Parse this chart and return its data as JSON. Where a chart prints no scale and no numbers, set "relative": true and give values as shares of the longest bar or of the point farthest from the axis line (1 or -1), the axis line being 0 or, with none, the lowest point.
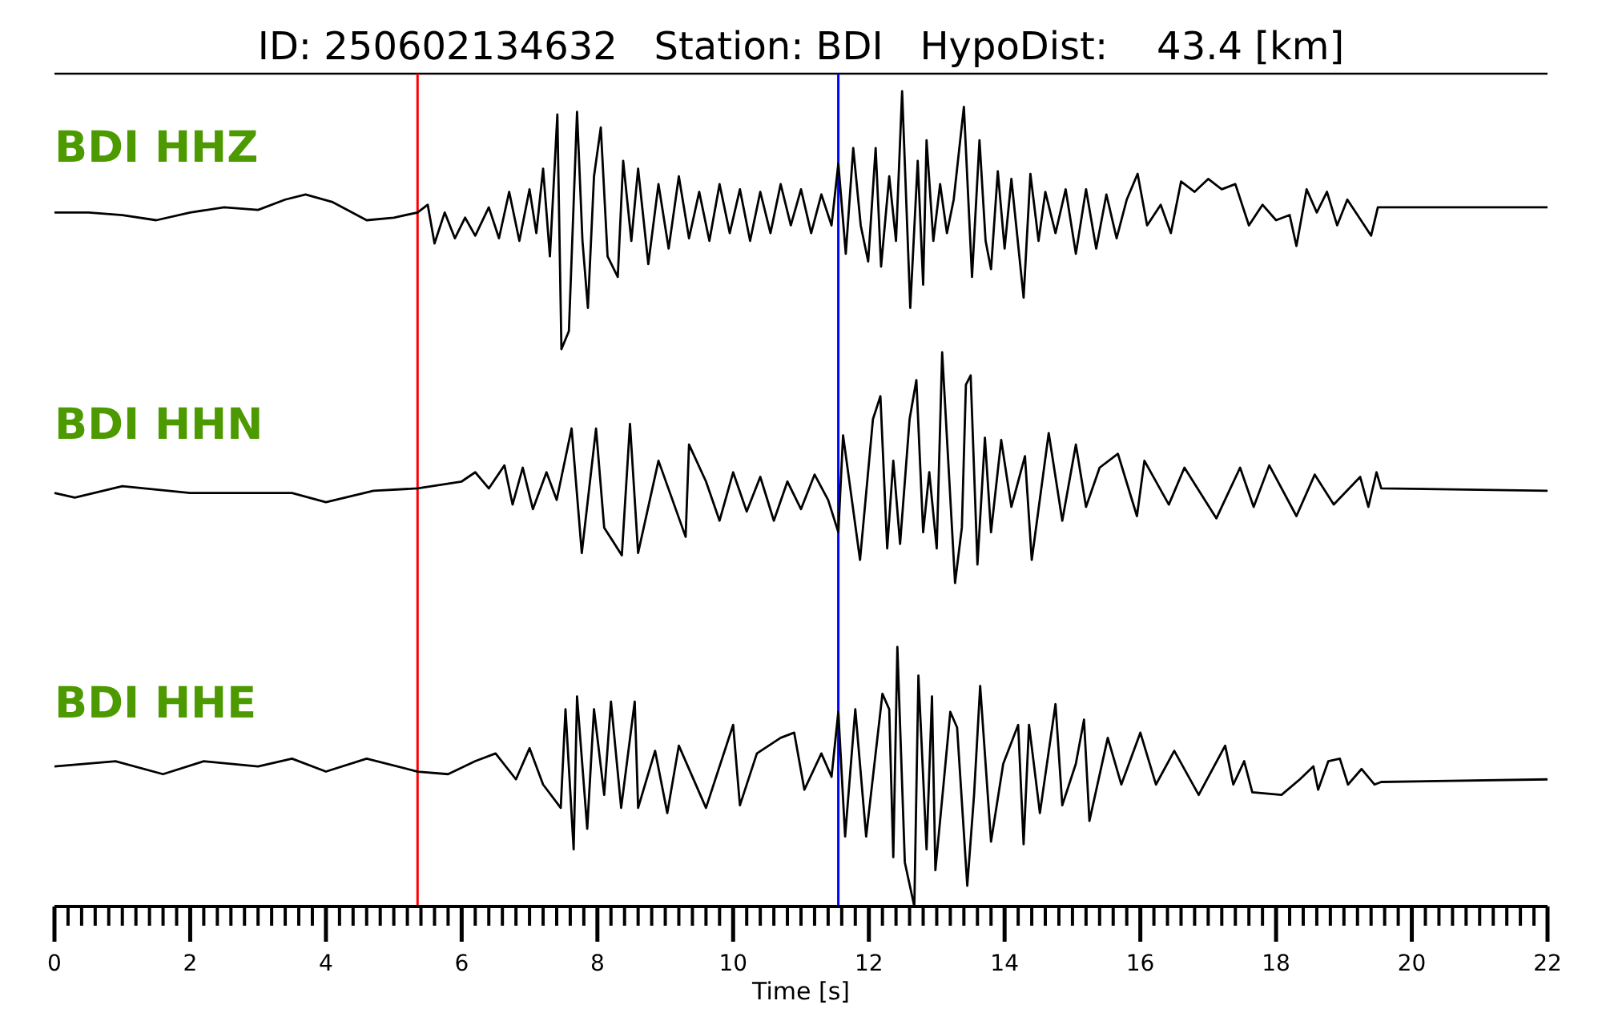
{
  "chart_data": [
    {
      "type": "line",
      "title": "ID: 250602134632   Station: BDI   HypoDist:    43.4 [km]",
      "annotations": [
        "BDI HHZ"
      ],
      "relative": true,
      "tick_labels": false,
      "xlim": [
        0,
        22
      ],
      "x": [
        0,
        0.5,
        1,
        1.5,
        2,
        2.5,
        3,
        3.4,
        3.7,
        4.1,
        4.6,
        5,
        5.35,
        5.5,
        5.6,
        5.75,
        5.9,
        6.05,
        6.2,
        6.4,
        6.55,
        6.7,
        6.85,
        7,
        7.1,
        7.2,
        7.3,
        7.41,
        7.47,
        7.58,
        7.7,
        7.78,
        7.86,
        7.95,
        8.05,
        8.15,
        8.3,
        8.38,
        8.5,
        8.6,
        8.75,
        8.9,
        9.05,
        9.2,
        9.35,
        9.5,
        9.65,
        9.8,
        9.95,
        10.1,
        10.25,
        10.4,
        10.55,
        10.7,
        10.85,
        11,
        11.15,
        11.3,
        11.45,
        11.55,
        11.66,
        11.77,
        11.88,
        11.99,
        12.1,
        12.18,
        12.3,
        12.4,
        12.49,
        12.61,
        12.72,
        12.8,
        12.85,
        12.95,
        13.05,
        13.15,
        13.25,
        13.4,
        13.52,
        13.63,
        13.72,
        13.8,
        13.9,
        14,
        14.1,
        14.28,
        14.38,
        14.5,
        14.6,
        14.75,
        14.9,
        15.05,
        15.2,
        15.35,
        15.5,
        15.65,
        15.8,
        15.96,
        16.1,
        16.3,
        16.45,
        16.6,
        16.8,
        17,
        17.2,
        17.4,
        17.6,
        17.8,
        18,
        18.2,
        18.3,
        18.45,
        18.6,
        18.75,
        18.9,
        19.05,
        19.2,
        19.4,
        19.5,
        22
      ],
      "series": [
        {
          "color": "#000000",
          "values": [
            0.53,
            0.53,
            0.52,
            0.5,
            0.53,
            0.55,
            0.54,
            0.58,
            0.6,
            0.57,
            0.5,
            0.51,
            0.53,
            0.56,
            0.41,
            0.53,
            0.43,
            0.51,
            0.44,
            0.55,
            0.43,
            0.61,
            0.42,
            0.62,
            0.45,
            0.7,
            0.36,
            0.91,
            0,
            0.07,
            0.92,
            0.42,
            0.16,
            0.67,
            0.86,
            0.36,
            0.28,
            0.73,
            0.42,
            0.7,
            0.33,
            0.64,
            0.39,
            0.67,
            0.43,
            0.61,
            0.42,
            0.64,
            0.45,
            0.62,
            0.42,
            0.61,
            0.45,
            0.64,
            0.48,
            0.62,
            0.45,
            0.6,
            0.48,
            0.72,
            0.37,
            0.78,
            0.48,
            0.34,
            0.78,
            0.32,
            0.67,
            0.42,
            1,
            0.16,
            0.73,
            0.25,
            0.81,
            0.42,
            0.64,
            0.45,
            0.58,
            0.94,
            0.28,
            0.81,
            0.42,
            0.31,
            0.69,
            0.39,
            0.66,
            0.2,
            0.68,
            0.42,
            0.61,
            0.45,
            0.62,
            0.37,
            0.62,
            0.39,
            0.6,
            0.43,
            0.58,
            0.68,
            0.48,
            0.56,
            0.45,
            0.65,
            0.61,
            0.66,
            0.62,
            0.64,
            0.48,
            0.56,
            0.5,
            0.52,
            0.4,
            0.62,
            0.53,
            0.61,
            0.48,
            0.58,
            0.52,
            0.44,
            0.55,
            0.55
          ]
        }
      ],
      "ref_lines": [
        {
          "axis": "x",
          "value": 5.35,
          "color": "#ff0000"
        },
        {
          "axis": "x",
          "value": 11.55,
          "color": "#0000ff"
        }
      ]
    },
    {
      "type": "line",
      "annotations": [
        "BDI HHN"
      ],
      "relative": true,
      "tick_labels": false,
      "xlim": [
        0,
        22
      ],
      "x": [
        0,
        0.3,
        1,
        2,
        3.5,
        4,
        4.7,
        5.35,
        6,
        6.2,
        6.4,
        6.63,
        6.75,
        6.9,
        7.05,
        7.25,
        7.4,
        7.62,
        7.77,
        7.98,
        8.1,
        8.36,
        8.48,
        8.6,
        8.9,
        9.3,
        9.35,
        9.6,
        9.8,
        10,
        10.2,
        10.4,
        10.6,
        10.8,
        11,
        11.2,
        11.4,
        11.55,
        11.62,
        11.87,
        12.06,
        12.17,
        12.27,
        12.36,
        12.46,
        12.6,
        12.7,
        12.8,
        12.89,
        13,
        13.08,
        13.27,
        13.37,
        13.43,
        13.5,
        13.6,
        13.71,
        13.8,
        13.95,
        14.1,
        14.3,
        14.4,
        14.65,
        14.85,
        15.05,
        15.2,
        15.4,
        15.67,
        15.95,
        16.06,
        16.42,
        16.65,
        17.12,
        17.47,
        17.67,
        17.9,
        18.3,
        18.57,
        18.85,
        19.24,
        19.36,
        19.48,
        19.55,
        22
      ],
      "series": [
        {
          "color": "#000000",
          "values": [
            0.39,
            0.37,
            0.42,
            0.39,
            0.39,
            0.35,
            0.4,
            0.41,
            0.44,
            0.48,
            0.41,
            0.51,
            0.34,
            0.5,
            0.32,
            0.48,
            0.36,
            0.67,
            0.13,
            0.67,
            0.24,
            0.12,
            0.69,
            0.13,
            0.53,
            0.2,
            0.6,
            0.44,
            0.27,
            0.48,
            0.31,
            0.46,
            0.27,
            0.44,
            0.32,
            0.47,
            0.36,
            0.22,
            0.64,
            0.1,
            0.71,
            0.81,
            0.15,
            0.53,
            0.17,
            0.71,
            0.88,
            0.22,
            0.48,
            0.15,
            1,
            0,
            0.24,
            0.86,
            0.9,
            0.08,
            0.63,
            0.22,
            0.62,
            0.33,
            0.55,
            0.1,
            0.65,
            0.27,
            0.6,
            0.33,
            0.5,
            0.56,
            0.29,
            0.53,
            0.34,
            0.5,
            0.28,
            0.5,
            0.33,
            0.51,
            0.29,
            0.47,
            0.34,
            0.46,
            0.33,
            0.48,
            0.41,
            0.4
          ]
        }
      ],
      "ref_lines": [
        {
          "axis": "x",
          "value": 5.35,
          "color": "#ff0000"
        },
        {
          "axis": "x",
          "value": 11.55,
          "color": "#0000ff"
        }
      ]
    },
    {
      "type": "line",
      "annotations": [
        "BDI HHE"
      ],
      "relative": true,
      "tick_labels": "x",
      "xlim": [
        0,
        22
      ],
      "xlabel": "Time [s]",
      "xticks": [
        0,
        {
          "value": 0.2,
          "label": null
        },
        {
          "value": 0.4,
          "label": null
        },
        {
          "value": 0.6,
          "label": null
        },
        {
          "value": 0.8,
          "label": null
        },
        {
          "value": 1,
          "label": null
        },
        {
          "value": 1.2,
          "label": null
        },
        {
          "value": 1.4,
          "label": null
        },
        {
          "value": 1.6,
          "label": null
        },
        {
          "value": 1.8,
          "label": null
        },
        2,
        {
          "value": 2.2,
          "label": null
        },
        {
          "value": 2.4,
          "label": null
        },
        {
          "value": 2.6,
          "label": null
        },
        {
          "value": 2.8,
          "label": null
        },
        {
          "value": 3,
          "label": null
        },
        {
          "value": 3.2,
          "label": null
        },
        {
          "value": 3.4,
          "label": null
        },
        {
          "value": 3.6,
          "label": null
        },
        {
          "value": 3.8,
          "label": null
        },
        4,
        {
          "value": 4.2,
          "label": null
        },
        {
          "value": 4.4,
          "label": null
        },
        {
          "value": 4.6,
          "label": null
        },
        {
          "value": 4.8,
          "label": null
        },
        {
          "value": 5,
          "label": null
        },
        {
          "value": 5.2,
          "label": null
        },
        {
          "value": 5.4,
          "label": null
        },
        {
          "value": 5.6,
          "label": null
        },
        {
          "value": 5.8,
          "label": null
        },
        6,
        {
          "value": 6.2,
          "label": null
        },
        {
          "value": 6.4,
          "label": null
        },
        {
          "value": 6.6,
          "label": null
        },
        {
          "value": 6.8,
          "label": null
        },
        {
          "value": 7,
          "label": null
        },
        {
          "value": 7.2,
          "label": null
        },
        {
          "value": 7.4,
          "label": null
        },
        {
          "value": 7.6,
          "label": null
        },
        {
          "value": 7.8,
          "label": null
        },
        8,
        {
          "value": 8.2,
          "label": null
        },
        {
          "value": 8.4,
          "label": null
        },
        {
          "value": 8.6,
          "label": null
        },
        {
          "value": 8.8,
          "label": null
        },
        {
          "value": 9,
          "label": null
        },
        {
          "value": 9.2,
          "label": null
        },
        {
          "value": 9.4,
          "label": null
        },
        {
          "value": 9.6,
          "label": null
        },
        {
          "value": 9.8,
          "label": null
        },
        10,
        {
          "value": 10.2,
          "label": null
        },
        {
          "value": 10.4,
          "label": null
        },
        {
          "value": 10.6,
          "label": null
        },
        {
          "value": 10.8,
          "label": null
        },
        {
          "value": 11,
          "label": null
        },
        {
          "value": 11.2,
          "label": null
        },
        {
          "value": 11.4,
          "label": null
        },
        {
          "value": 11.6,
          "label": null
        },
        {
          "value": 11.8,
          "label": null
        },
        12,
        {
          "value": 12.2,
          "label": null
        },
        {
          "value": 12.4,
          "label": null
        },
        {
          "value": 12.6,
          "label": null
        },
        {
          "value": 12.8,
          "label": null
        },
        {
          "value": 13,
          "label": null
        },
        {
          "value": 13.2,
          "label": null
        },
        {
          "value": 13.4,
          "label": null
        },
        {
          "value": 13.6,
          "label": null
        },
        {
          "value": 13.8,
          "label": null
        },
        14,
        {
          "value": 14.2,
          "label": null
        },
        {
          "value": 14.4,
          "label": null
        },
        {
          "value": 14.6,
          "label": null
        },
        {
          "value": 14.8,
          "label": null
        },
        {
          "value": 15,
          "label": null
        },
        {
          "value": 15.2,
          "label": null
        },
        {
          "value": 15.4,
          "label": null
        },
        {
          "value": 15.6,
          "label": null
        },
        {
          "value": 15.8,
          "label": null
        },
        16,
        {
          "value": 16.2,
          "label": null
        },
        {
          "value": 16.4,
          "label": null
        },
        {
          "value": 16.6,
          "label": null
        },
        {
          "value": 16.8,
          "label": null
        },
        {
          "value": 17,
          "label": null
        },
        {
          "value": 17.2,
          "label": null
        },
        {
          "value": 17.4,
          "label": null
        },
        {
          "value": 17.6,
          "label": null
        },
        {
          "value": 17.8,
          "label": null
        },
        18,
        {
          "value": 18.2,
          "label": null
        },
        {
          "value": 18.4,
          "label": null
        },
        {
          "value": 18.6,
          "label": null
        },
        {
          "value": 18.8,
          "label": null
        },
        {
          "value": 19,
          "label": null
        },
        {
          "value": 19.2,
          "label": null
        },
        {
          "value": 19.4,
          "label": null
        },
        {
          "value": 19.6,
          "label": null
        },
        {
          "value": 19.8,
          "label": null
        },
        20,
        {
          "value": 20.2,
          "label": null
        },
        {
          "value": 20.4,
          "label": null
        },
        {
          "value": 20.6,
          "label": null
        },
        {
          "value": 20.8,
          "label": null
        },
        {
          "value": 21,
          "label": null
        },
        {
          "value": 21.2,
          "label": null
        },
        {
          "value": 21.4,
          "label": null
        },
        {
          "value": 21.6,
          "label": null
        },
        {
          "value": 21.8,
          "label": null
        },
        22
      ],
      "x": [
        0,
        0.9,
        1.6,
        2.2,
        3,
        3.5,
        4,
        4.6,
        5.35,
        5.8,
        6.2,
        6.5,
        6.8,
        7,
        7.2,
        7.46,
        7.53,
        7.65,
        7.7,
        7.85,
        7.95,
        8.1,
        8.2,
        8.35,
        8.55,
        8.6,
        8.85,
        9.03,
        9.2,
        9.6,
        10,
        10.1,
        10.35,
        10.7,
        10.9,
        11.05,
        11.3,
        11.45,
        11.55,
        11.65,
        11.8,
        11.96,
        12.2,
        12.3,
        12.36,
        12.42,
        12.53,
        12.67,
        12.73,
        12.85,
        12.93,
        12.98,
        13.1,
        13.2,
        13.3,
        13.45,
        13.55,
        13.64,
        13.8,
        13.98,
        14.2,
        14.28,
        14.36,
        14.52,
        14.75,
        14.85,
        15.05,
        15.17,
        15.25,
        15.52,
        15.72,
        16,
        16.23,
        16.5,
        16.86,
        17.25,
        17.37,
        17.53,
        17.65,
        18.08,
        18.35,
        18.55,
        18.62,
        18.77,
        18.94,
        19.06,
        19.26,
        19.45,
        19.55,
        22
      ],
      "series": [
        {
          "color": "#000000",
          "values": [
            0.54,
            0.56,
            0.51,
            0.56,
            0.54,
            0.57,
            0.52,
            0.57,
            0.52,
            0.51,
            0.56,
            0.59,
            0.49,
            0.61,
            0.47,
            0.38,
            0.76,
            0.22,
            0.81,
            0.3,
            0.76,
            0.43,
            0.79,
            0.38,
            0.79,
            0.38,
            0.6,
            0.36,
            0.62,
            0.38,
            0.7,
            0.39,
            0.59,
            0.65,
            0.67,
            0.45,
            0.59,
            0.5,
            0.75,
            0.27,
            0.76,
            0.27,
            0.82,
            0.76,
            0.19,
            1,
            0.17,
            0,
            0.89,
            0.22,
            0.81,
            0.14,
            0.47,
            0.75,
            0.69,
            0.08,
            0.43,
            0.85,
            0.25,
            0.55,
            0.7,
            0.24,
            0.7,
            0.36,
            0.78,
            0.39,
            0.55,
            0.72,
            0.33,
            0.65,
            0.47,
            0.67,
            0.47,
            0.6,
            0.43,
            0.62,
            0.47,
            0.56,
            0.44,
            0.43,
            0.49,
            0.54,
            0.45,
            0.56,
            0.57,
            0.47,
            0.53,
            0.47,
            0.48,
            0.49
          ]
        }
      ],
      "ref_lines": [
        {
          "axis": "x",
          "value": 5.35,
          "color": "#ff0000"
        },
        {
          "axis": "x",
          "value": 11.55,
          "color": "#0000ff"
        }
      ]
    }
  ]
}
